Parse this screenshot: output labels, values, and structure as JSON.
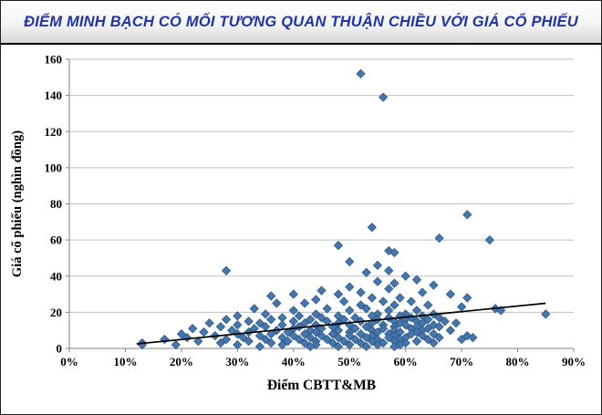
{
  "header": {
    "title": "ĐIỂM MINH BẠCH CÓ MỐI TƯƠNG QUAN THUẬN CHIỀU VỚI GIÁ CỔ PHIẾU"
  },
  "theme": {
    "title_color": "#1E34A8",
    "marker_color": "#4576AC",
    "marker_edge_color": "#2F5A8B",
    "gridline_color": "#BFBFBF",
    "axis_color": "#808080",
    "trendline_color": "#000000"
  },
  "chart_data": {
    "type": "scatter",
    "title": "ĐIỂM MINH BẠCH CÓ MỐI TƯƠNG QUAN THUẬN CHIỀU VỚI GIÁ CỔ PHIẾU",
    "xlabel": "Điểm CBTT&MB",
    "ylabel": "Giá cổ phiếu (nghìn đồng)",
    "xlim": [
      0,
      90
    ],
    "ylim": [
      0,
      160
    ],
    "x_tick_values": [
      0,
      10,
      20,
      30,
      40,
      50,
      60,
      70,
      80,
      90
    ],
    "x_tick_labels": [
      "0%",
      "10%",
      "20%",
      "30%",
      "40%",
      "50%",
      "60%",
      "70%",
      "80%",
      "90%"
    ],
    "y_tick_values": [
      0,
      20,
      40,
      60,
      80,
      100,
      120,
      140,
      160
    ],
    "y_tick_labels": [
      "0",
      "20",
      "40",
      "60",
      "80",
      "100",
      "120",
      "140",
      "160"
    ],
    "grid": "horizontal",
    "legend": "none",
    "marker": "diamond",
    "points": [
      [
        52,
        152
      ],
      [
        56,
        139
      ],
      [
        71,
        74
      ],
      [
        54,
        67
      ],
      [
        66,
        61
      ],
      [
        75,
        60
      ],
      [
        48,
        57
      ],
      [
        57,
        54
      ],
      [
        58,
        53
      ],
      [
        50,
        48
      ],
      [
        55,
        46
      ],
      [
        28,
        43
      ],
      [
        57,
        43
      ],
      [
        53,
        42
      ],
      [
        60,
        40
      ],
      [
        62,
        38
      ],
      [
        55,
        37
      ],
      [
        58,
        36
      ],
      [
        65,
        35
      ],
      [
        50,
        34
      ],
      [
        57,
        33
      ],
      [
        45,
        32
      ],
      [
        52,
        31
      ],
      [
        63,
        31
      ],
      [
        40,
        30
      ],
      [
        48,
        30
      ],
      [
        68,
        30
      ],
      [
        36,
        29
      ],
      [
        54,
        28
      ],
      [
        59,
        28
      ],
      [
        71,
        28
      ],
      [
        44,
        27
      ],
      [
        49,
        26
      ],
      [
        56,
        26
      ],
      [
        61,
        26
      ],
      [
        37,
        25
      ],
      [
        42,
        25
      ],
      [
        52,
        24
      ],
      [
        58,
        24
      ],
      [
        64,
        24
      ],
      [
        70,
        23
      ],
      [
        33,
        22
      ],
      [
        46,
        22
      ],
      [
        53,
        22
      ],
      [
        76,
        22
      ],
      [
        77,
        21
      ],
      [
        40,
        21
      ],
      [
        50,
        21
      ],
      [
        57,
        21
      ],
      [
        62,
        21
      ],
      [
        85,
        19
      ],
      [
        35,
        19
      ],
      [
        44,
        19
      ],
      [
        55,
        19
      ],
      [
        60,
        19
      ],
      [
        65,
        19
      ],
      [
        30,
        18
      ],
      [
        41,
        18
      ],
      [
        48,
        18
      ],
      [
        54,
        18
      ],
      [
        59,
        18
      ],
      [
        63,
        18
      ],
      [
        38,
        17
      ],
      [
        45,
        17
      ],
      [
        51,
        17
      ],
      [
        57,
        17
      ],
      [
        61,
        17
      ],
      [
        66,
        17
      ],
      [
        28,
        16
      ],
      [
        36,
        16
      ],
      [
        43,
        16
      ],
      [
        49,
        16
      ],
      [
        55,
        16
      ],
      [
        60,
        16
      ],
      [
        64,
        16
      ],
      [
        32,
        15
      ],
      [
        40,
        15
      ],
      [
        46,
        15
      ],
      [
        52,
        15
      ],
      [
        58,
        15
      ],
      [
        62,
        15
      ],
      [
        67,
        15
      ],
      [
        25,
        14
      ],
      [
        34,
        14
      ],
      [
        42,
        14
      ],
      [
        48,
        14
      ],
      [
        54,
        14
      ],
      [
        59,
        14
      ],
      [
        63,
        14
      ],
      [
        69,
        14
      ],
      [
        30,
        13
      ],
      [
        38,
        13
      ],
      [
        44,
        13
      ],
      [
        50,
        13
      ],
      [
        56,
        13
      ],
      [
        60,
        13
      ],
      [
        65,
        13
      ],
      [
        27,
        12
      ],
      [
        35,
        12
      ],
      [
        41,
        12
      ],
      [
        47,
        12
      ],
      [
        53,
        12
      ],
      [
        58,
        12
      ],
      [
        62,
        12
      ],
      [
        66,
        12
      ],
      [
        22,
        11
      ],
      [
        33,
        11
      ],
      [
        40,
        11
      ],
      [
        45,
        11
      ],
      [
        51,
        11
      ],
      [
        56,
        11
      ],
      [
        61,
        11
      ],
      [
        64,
        11
      ],
      [
        29,
        10
      ],
      [
        37,
        10
      ],
      [
        43,
        10
      ],
      [
        48,
        10
      ],
      [
        54,
        10
      ],
      [
        58,
        10
      ],
      [
        63,
        10
      ],
      [
        68,
        10
      ],
      [
        24,
        9
      ],
      [
        32,
        9
      ],
      [
        39,
        9
      ],
      [
        44,
        9
      ],
      [
        50,
        9
      ],
      [
        55,
        9
      ],
      [
        59,
        9
      ],
      [
        62,
        9
      ],
      [
        20,
        8
      ],
      [
        30,
        8
      ],
      [
        36,
        8
      ],
      [
        42,
        8
      ],
      [
        47,
        8
      ],
      [
        52,
        8
      ],
      [
        57,
        8
      ],
      [
        61,
        8
      ],
      [
        65,
        8
      ],
      [
        26,
        7
      ],
      [
        34,
        7
      ],
      [
        40,
        7
      ],
      [
        45,
        7
      ],
      [
        50,
        7
      ],
      [
        54,
        7
      ],
      [
        58,
        7
      ],
      [
        63,
        7
      ],
      [
        71,
        7
      ],
      [
        21,
        6
      ],
      [
        31,
        6
      ],
      [
        38,
        6
      ],
      [
        43,
        6
      ],
      [
        48,
        6
      ],
      [
        53,
        6
      ],
      [
        57,
        6
      ],
      [
        60,
        6
      ],
      [
        66,
        6
      ],
      [
        72,
        6
      ],
      [
        17,
        5
      ],
      [
        28,
        5
      ],
      [
        35,
        5
      ],
      [
        41,
        5
      ],
      [
        46,
        5
      ],
      [
        51,
        5
      ],
      [
        55,
        5
      ],
      [
        59,
        5
      ],
      [
        64,
        5
      ],
      [
        70,
        5
      ],
      [
        23,
        4
      ],
      [
        32,
        4
      ],
      [
        39,
        4
      ],
      [
        44,
        4
      ],
      [
        49,
        4
      ],
      [
        54,
        4
      ],
      [
        58,
        4
      ],
      [
        62,
        4
      ],
      [
        13,
        3
      ],
      [
        27,
        3
      ],
      [
        36,
        3
      ],
      [
        42,
        3
      ],
      [
        47,
        3
      ],
      [
        52,
        3
      ],
      [
        56,
        3
      ],
      [
        60,
        3
      ],
      [
        65,
        3
      ],
      [
        19,
        2
      ],
      [
        30,
        2
      ],
      [
        38,
        2
      ],
      [
        44,
        2
      ],
      [
        50,
        2
      ],
      [
        55,
        2
      ],
      [
        59,
        2
      ],
      [
        13,
        2
      ],
      [
        34,
        1
      ],
      [
        43,
        1
      ],
      [
        48,
        1
      ],
      [
        53,
        1
      ],
      [
        58,
        1
      ]
    ],
    "trendline": {
      "x": [
        12,
        85
      ],
      "y": [
        2.5,
        25
      ]
    }
  }
}
